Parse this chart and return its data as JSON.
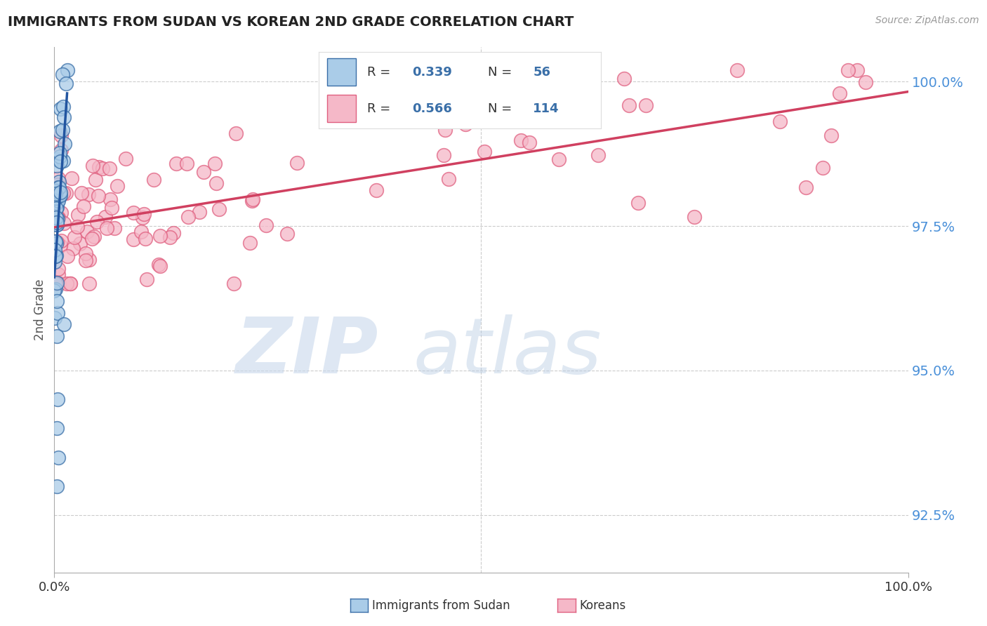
{
  "title": "IMMIGRANTS FROM SUDAN VS KOREAN 2ND GRADE CORRELATION CHART",
  "source_text": "Source: ZipAtlas.com",
  "ylabel": "2nd Grade",
  "ytick_values": [
    0.925,
    0.95,
    0.975,
    1.0
  ],
  "ytick_labels": [
    "92.5%",
    "95.0%",
    "97.5%",
    "100.0%"
  ],
  "legend_label_blue": "Immigrants from Sudan",
  "legend_label_pink": "Koreans",
  "r_blue": "0.339",
  "n_blue": "56",
  "r_pink": "0.566",
  "n_pink": "114",
  "blue_face_color": "#aacce8",
  "blue_edge_color": "#3a6fa8",
  "pink_face_color": "#f5b8c8",
  "pink_edge_color": "#e06080",
  "blue_line_color": "#2255a0",
  "pink_line_color": "#d04060",
  "stat_text_color": "#3a6fa8",
  "ytick_color": "#4a90d9",
  "background_color": "#ffffff",
  "watermark_zip": "ZIP",
  "watermark_atlas": "atlas",
  "grid_color": "#cccccc",
  "ymin": 0.915,
  "ymax": 1.006,
  "xmin": 0.0,
  "xmax": 1.0
}
